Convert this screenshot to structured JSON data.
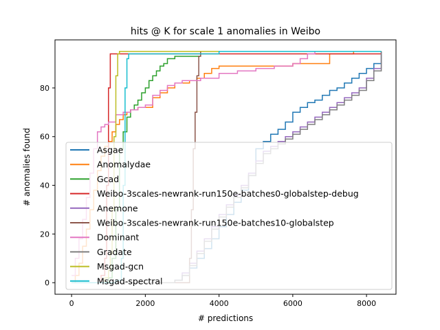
{
  "chart_data": {
    "type": "line",
    "title": "hits @ K for scale 1 anomalies in Weibo",
    "xlabel": "# predictions",
    "ylabel": "# anomalies found",
    "xlim": [
      -450,
      8800
    ],
    "ylim": [
      -4.75,
      99.75
    ],
    "xticks": [
      0,
      2000,
      4000,
      6000,
      8000
    ],
    "yticks": [
      0,
      20,
      40,
      60,
      80
    ],
    "grid": false,
    "legend_position": "lower-right, overlapping",
    "series": [
      {
        "name": "Asgae",
        "color": "#1f77b4",
        "x": [
          0,
          2000,
          2800,
          3000,
          3200,
          3400,
          3600,
          3800,
          4000,
          4200,
          4400,
          4600,
          4800,
          5000,
          5200,
          5400,
          5600,
          5800,
          6000,
          6200,
          6400,
          6600,
          6800,
          7000,
          7200,
          7400,
          7600,
          7800,
          8000,
          8200,
          8400
        ],
        "y": [
          0,
          0,
          1,
          3,
          6,
          10,
          14,
          18,
          23,
          28,
          33,
          38,
          44,
          55,
          58,
          61,
          63,
          66,
          70,
          72,
          74,
          75,
          77,
          79,
          80,
          82,
          84,
          86,
          88,
          90,
          95
        ]
      },
      {
        "name": "Anomalydae",
        "color": "#ff7f0e",
        "x": [
          0,
          100,
          200,
          300,
          400,
          500,
          600,
          700,
          800,
          900,
          1000,
          1100,
          1200,
          1300,
          1400,
          1500,
          1600,
          1700,
          1800,
          1900,
          2000,
          2200,
          2400,
          2600,
          2800,
          3000,
          3200,
          3400,
          3600,
          3800,
          4000,
          4500,
          5000,
          5500,
          6000,
          6500,
          7000,
          7500,
          7650,
          8000,
          8400
        ],
        "y": [
          0,
          3,
          8,
          15,
          22,
          30,
          38,
          46,
          52,
          56,
          58,
          62,
          65,
          67,
          69,
          70,
          71,
          71,
          72,
          72,
          72,
          76,
          78,
          80,
          82,
          82,
          83,
          84,
          86,
          88,
          89,
          89,
          89,
          89,
          90,
          90,
          94,
          94,
          95,
          95,
          95
        ]
      },
      {
        "name": "Gcad",
        "color": "#2ca02c",
        "x": [
          0,
          200,
          400,
          600,
          800,
          1000,
          1100,
          1200,
          1300,
          1400,
          1500,
          1600,
          1700,
          1800,
          1900,
          2000,
          2100,
          2200,
          2300,
          2400,
          2500,
          2600,
          2700,
          2800,
          3000,
          3200,
          3400,
          3500,
          4000,
          6000,
          8400
        ],
        "y": [
          0,
          0,
          0,
          0,
          0,
          2,
          10,
          30,
          55,
          62,
          68,
          71,
          73,
          75,
          78,
          80,
          83,
          85,
          87,
          89,
          90,
          92,
          92,
          93,
          93,
          93,
          93,
          95,
          95,
          95,
          95
        ]
      },
      {
        "name": "Weibo-3scales-newrank-run150e-batches0-globalstep-debug",
        "color": "#d62728",
        "x": [
          0,
          600,
          800,
          900,
          950,
          1000,
          1050,
          1100,
          2000,
          4000,
          6000,
          8400
        ],
        "y": [
          0,
          0,
          3,
          10,
          40,
          80,
          94,
          94,
          94,
          94,
          94,
          94
        ]
      },
      {
        "name": "Anemone",
        "color": "#9467bd",
        "x": [
          0,
          2800,
          3000,
          3200,
          3400,
          3600,
          3800,
          4000,
          4200,
          4400,
          4600,
          4800,
          5000,
          5200,
          5400,
          5600,
          5800,
          6000,
          6200,
          6400,
          6600,
          6800,
          7000,
          7200,
          7400,
          7600,
          7800,
          8000,
          8200,
          8400
        ],
        "y": [
          0,
          1,
          4,
          8,
          13,
          18,
          23,
          28,
          32,
          36,
          40,
          45,
          50,
          54,
          56,
          58,
          60,
          62,
          64,
          66,
          68,
          70,
          72,
          74,
          76,
          78,
          80,
          84,
          88,
          95
        ]
      },
      {
        "name": "Weibo-3scales-newrank-run150e-batches10-globalstep",
        "color": "#8c564b",
        "x": [
          0,
          3100,
          3200,
          3250,
          3300,
          3350,
          3400,
          3450,
          3500,
          4000,
          6000,
          8400
        ],
        "y": [
          0,
          0,
          10,
          30,
          55,
          70,
          85,
          93,
          95,
          95,
          95,
          95
        ]
      },
      {
        "name": "Dominant",
        "color": "#e377c2",
        "x": [
          0,
          100,
          200,
          300,
          400,
          500,
          600,
          700,
          800,
          900,
          1000,
          1200,
          1400,
          1600,
          1800,
          2000,
          2200,
          2400,
          2600,
          2800,
          3000,
          3500,
          4000,
          4500,
          5000,
          5500,
          6000,
          6200,
          6400,
          6600,
          7000,
          8400
        ],
        "y": [
          3,
          10,
          18,
          26,
          35,
          45,
          55,
          62,
          64,
          65,
          66,
          69,
          70,
          71,
          72,
          73,
          77,
          79,
          81,
          82,
          83,
          84,
          86,
          87,
          88,
          89,
          90,
          92,
          94,
          95,
          95,
          95
        ]
      },
      {
        "name": "Gradate",
        "color": "#7f7f7f",
        "x": [
          0,
          2800,
          3000,
          3200,
          3400,
          3600,
          3800,
          4000,
          4200,
          4400,
          4600,
          4800,
          5000,
          5200,
          5400,
          5600,
          5800,
          6000,
          6200,
          6400,
          6600,
          6800,
          7000,
          7200,
          7400,
          7600,
          7800,
          8000,
          8200,
          8400
        ],
        "y": [
          0,
          1,
          3,
          7,
          12,
          17,
          22,
          27,
          31,
          35,
          39,
          44,
          49,
          53,
          55,
          57,
          59,
          61,
          63,
          65,
          67,
          69,
          71,
          73,
          75,
          77,
          79,
          83,
          87,
          95
        ]
      },
      {
        "name": "Msgad-gcn",
        "color": "#bcbd22",
        "x": [
          0,
          700,
          900,
          1000,
          1050,
          1100,
          1150,
          1200,
          1250,
          1300,
          2000,
          4000,
          6000,
          8400
        ],
        "y": [
          0,
          0,
          2,
          5,
          12,
          30,
          60,
          85,
          94,
          95,
          95,
          95,
          95,
          95
        ]
      },
      {
        "name": "Msgad-spectral",
        "color": "#17becf",
        "x": [
          0,
          1000,
          1200,
          1350,
          1400,
          1450,
          1500,
          1550,
          1600,
          2000,
          4000,
          6000,
          8400
        ],
        "y": [
          0,
          0,
          1,
          10,
          40,
          80,
          92,
          94,
          94,
          94,
          95,
          95,
          95
        ]
      }
    ]
  }
}
